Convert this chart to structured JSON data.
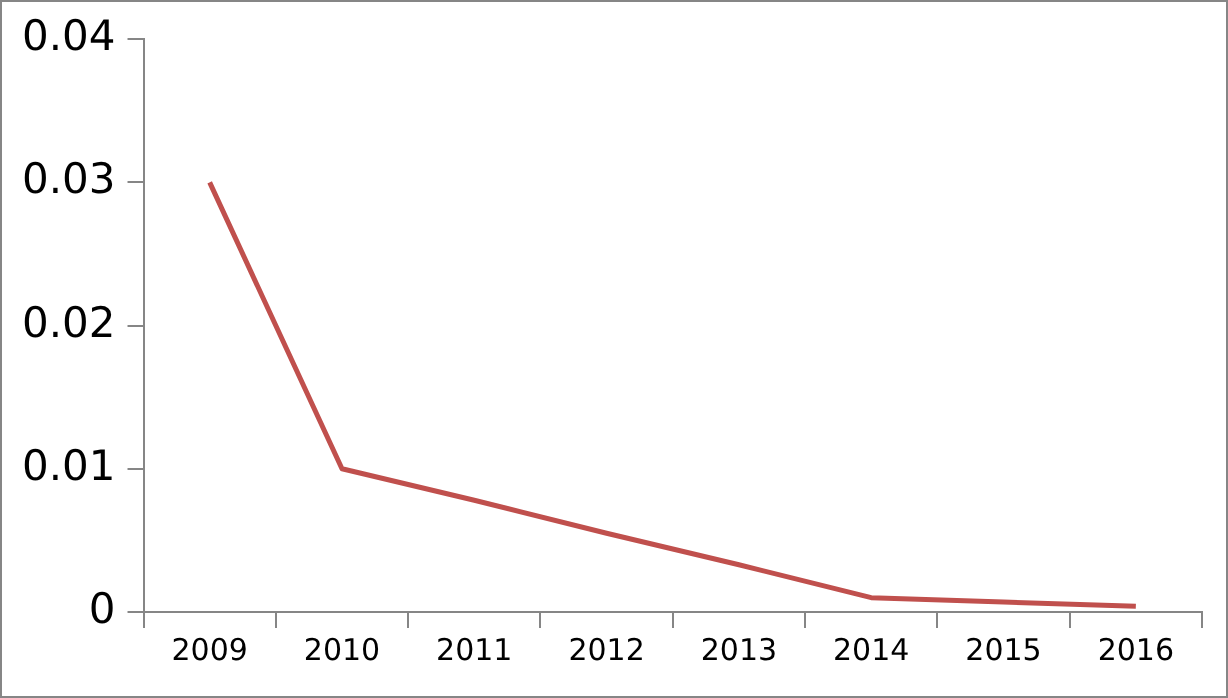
{
  "chart_data": {
    "type": "line",
    "categories": [
      "2009",
      "2010",
      "2011",
      "2012",
      "2013",
      "2014",
      "2015",
      "2016"
    ],
    "series": [
      {
        "color": "#c0504d",
        "values": [
          0.03,
          0.01,
          0.0078,
          0.0055,
          0.0033,
          0.001,
          0.0007,
          0.0004
        ]
      }
    ],
    "ylim": [
      0,
      0.04
    ],
    "yticks": [
      0,
      0.01,
      0.02,
      0.03,
      0.04
    ],
    "grid": false,
    "legend": false,
    "marker": "none",
    "line_style": "solid"
  }
}
